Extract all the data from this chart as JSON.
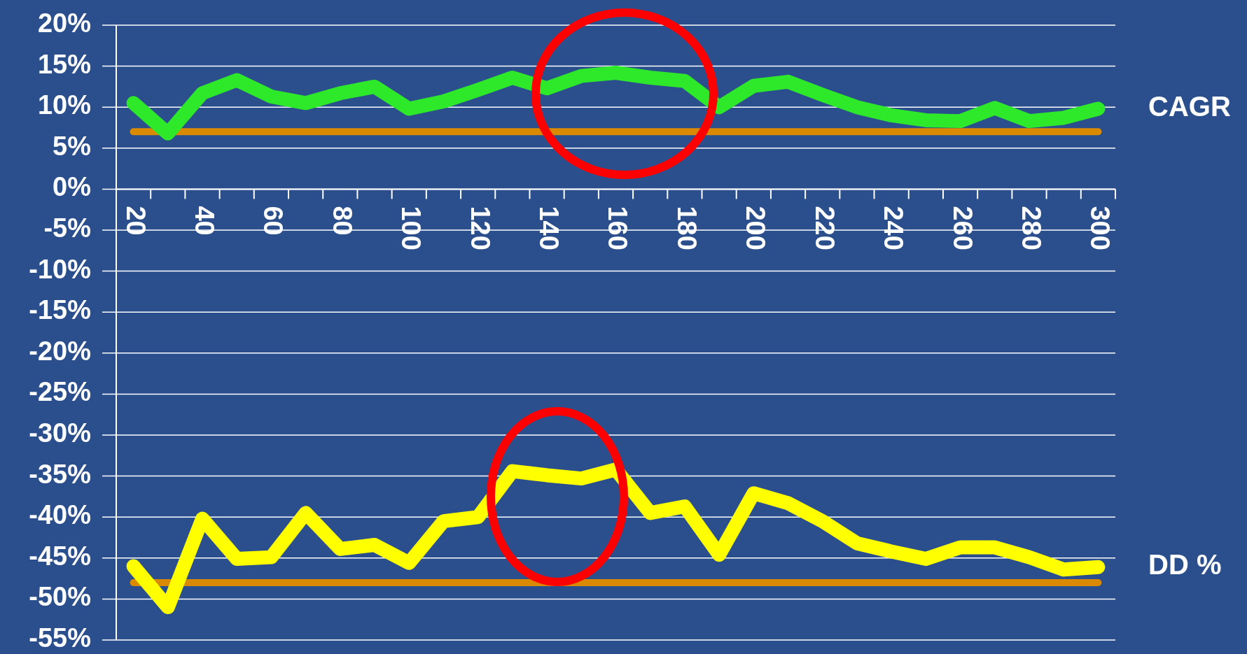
{
  "chart_data": {
    "type": "line",
    "categories": [
      "20",
      null,
      "40",
      null,
      "60",
      null,
      "80",
      null,
      "100",
      null,
      "120",
      null,
      "140",
      null,
      "160",
      null,
      "180",
      null,
      "200",
      null,
      "220",
      null,
      "240",
      null,
      "260",
      null,
      "280",
      null,
      "300"
    ],
    "series": [
      {
        "name": "CAGR",
        "color": "#2ee82a",
        "values": [
          10.5,
          6.8,
          11.7,
          13.3,
          11.3,
          10.5,
          11.7,
          12.5,
          9.8,
          10.7,
          12.1,
          13.6,
          12.3,
          13.8,
          14.2,
          13.6,
          13.2,
          10.0,
          12.6,
          13.1,
          11.5,
          10.0,
          9.0,
          8.4,
          8.3,
          9.9,
          8.3,
          8.7,
          9.8
        ]
      },
      {
        "name": "DD %",
        "color": "#ffff00",
        "values": [
          -46.0,
          -51.0,
          -40.2,
          -45.1,
          -44.9,
          -39.5,
          -43.9,
          -43.4,
          -45.6,
          -40.5,
          -40.0,
          -34.4,
          -34.9,
          -35.3,
          -34.2,
          -39.5,
          -38.7,
          -44.6,
          -37.1,
          -38.3,
          -40.5,
          -43.2,
          -44.2,
          -45.1,
          -43.7,
          -43.7,
          -44.9,
          -46.4,
          -46.1
        ]
      }
    ],
    "ref_lines": [
      {
        "axis": "y",
        "value": 7,
        "color": "#d98a00"
      },
      {
        "axis": "y",
        "value": -48,
        "color": "#d98a00"
      }
    ],
    "ylim": [
      -55,
      20
    ],
    "yticks": [
      {
        "value": 20,
        "label": "20%"
      },
      {
        "value": 15,
        "label": "15%"
      },
      {
        "value": 10,
        "label": "10%"
      },
      {
        "value": 5,
        "label": "5%"
      },
      {
        "value": 0,
        "label": "0%"
      },
      {
        "value": -5,
        "label": "-5%"
      },
      {
        "value": -10,
        "label": "-10%"
      },
      {
        "value": -15,
        "label": "-15%"
      },
      {
        "value": -20,
        "label": "-20%"
      },
      {
        "value": -25,
        "label": "-25%"
      },
      {
        "value": -30,
        "label": "-30%"
      },
      {
        "value": -35,
        "label": "-35%"
      },
      {
        "value": -40,
        "label": "-40%"
      },
      {
        "value": -45,
        "label": "-45%"
      },
      {
        "value": -50,
        "label": "-50%"
      },
      {
        "value": -55,
        "label": "-55%"
      }
    ],
    "grid": "y",
    "line_style": "solid"
  }
}
